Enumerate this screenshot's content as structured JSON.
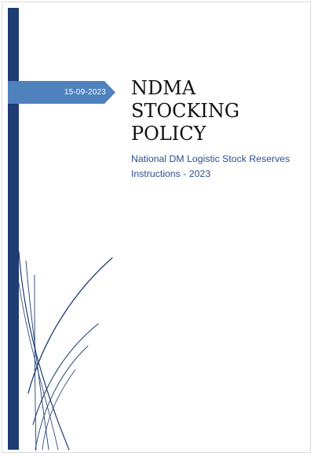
{
  "cover": {
    "date": "15-09-2023",
    "title_lines": [
      "NDMA",
      "STOCKING",
      "POLICY"
    ],
    "subtitle_lines": [
      "National DM Logistic Stock Reserves",
      "Instructions - 2023"
    ]
  },
  "colors": {
    "sidebar": "#1f3c73",
    "date_banner": "#4f81bd",
    "subtitle": "#2b4f8e",
    "swirl": "#1f3c73"
  }
}
